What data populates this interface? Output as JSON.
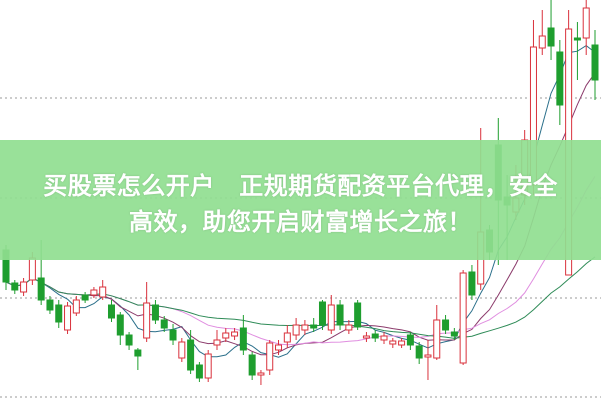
{
  "banner": {
    "line1": "买股票怎么开户　正规期货配资平台代理，安全",
    "line2": "高效，助您开启财富增长之旅！",
    "background": "#90de90"
  },
  "chart_data": {
    "type": "candlestick",
    "title": "",
    "xlabel": "",
    "ylabel": "",
    "ylim": [
      0,
      400
    ],
    "grid": "horizontal-dotted",
    "up_color": "#d9303b",
    "down_color": "#1e9e2e",
    "ma_colors": [
      "#2a6f8a",
      "#8b3a6b",
      "#e08ee0",
      "#2e8b57"
    ],
    "candles_ohlc": [
      [
        150,
        155,
        110,
        118
      ],
      [
        117,
        120,
        106,
        110
      ],
      [
        108,
        122,
        104,
        118
      ],
      [
        120,
        148,
        115,
        142
      ],
      [
        122,
        160,
        95,
        100
      ],
      [
        100,
        104,
        86,
        90
      ],
      [
        95,
        100,
        72,
        78
      ],
      [
        70,
        98,
        66,
        94
      ],
      [
        87,
        104,
        84,
        100
      ],
      [
        105,
        108,
        97,
        100
      ],
      [
        105,
        113,
        102,
        110
      ],
      [
        103,
        120,
        100,
        113
      ],
      [
        95,
        100,
        78,
        82
      ],
      [
        85,
        88,
        55,
        65
      ],
      [
        65,
        68,
        50,
        55
      ],
      [
        50,
        52,
        30,
        44
      ],
      [
        62,
        118,
        58,
        97
      ],
      [
        95,
        100,
        76,
        80
      ],
      [
        80,
        84,
        68,
        72
      ],
      [
        70,
        76,
        55,
        60
      ],
      [
        42,
        62,
        38,
        58
      ],
      [
        60,
        70,
        26,
        30
      ],
      [
        35,
        38,
        18,
        22
      ],
      [
        22,
        50,
        18,
        46
      ],
      [
        55,
        70,
        50,
        60
      ],
      [
        62,
        72,
        58,
        67
      ],
      [
        64,
        72,
        60,
        68
      ],
      [
        72,
        85,
        45,
        50
      ],
      [
        45,
        48,
        20,
        25
      ],
      [
        25,
        30,
        15,
        27
      ],
      [
        30,
        60,
        25,
        57
      ],
      [
        50,
        60,
        45,
        55
      ],
      [
        58,
        75,
        52,
        67
      ],
      [
        65,
        82,
        60,
        75
      ],
      [
        70,
        80,
        65,
        75
      ],
      [
        75,
        82,
        68,
        72
      ],
      [
        98,
        100,
        70,
        75
      ],
      [
        70,
        105,
        66,
        95
      ],
      [
        95,
        100,
        70,
        75
      ],
      [
        70,
        80,
        66,
        75
      ],
      [
        97,
        100,
        70,
        73
      ],
      [
        62,
        68,
        58,
        64
      ],
      [
        66,
        70,
        58,
        62
      ],
      [
        60,
        68,
        56,
        64
      ],
      [
        56,
        62,
        52,
        59
      ],
      [
        55,
        62,
        52,
        59
      ],
      [
        65,
        68,
        50,
        55
      ],
      [
        54,
        58,
        36,
        42
      ],
      [
        43,
        60,
        20,
        45
      ],
      [
        42,
        95,
        40,
        80
      ],
      [
        80,
        85,
        66,
        70
      ],
      [
        68,
        72,
        60,
        64
      ],
      [
        37,
        130,
        35,
        127
      ],
      [
        128,
        135,
        100,
        105
      ],
      [
        116,
        272,
        110,
        168
      ],
      [
        170,
        175,
        140,
        148
      ],
      [
        255,
        282,
        135,
        200
      ],
      [
        203,
        225,
        140,
        195
      ],
      [
        188,
        235,
        180,
        202
      ],
      [
        205,
        270,
        195,
        260
      ],
      [
        215,
        380,
        205,
        353
      ],
      [
        352,
        390,
        345,
        364
      ],
      [
        372,
        400,
        340,
        354
      ],
      [
        348,
        360,
        275,
        295
      ],
      [
        125,
        390,
        125,
        371
      ],
      [
        362,
        378,
        320,
        360
      ],
      [
        362,
        400,
        345,
        392
      ],
      [
        355,
        370,
        300,
        320
      ]
    ]
  }
}
